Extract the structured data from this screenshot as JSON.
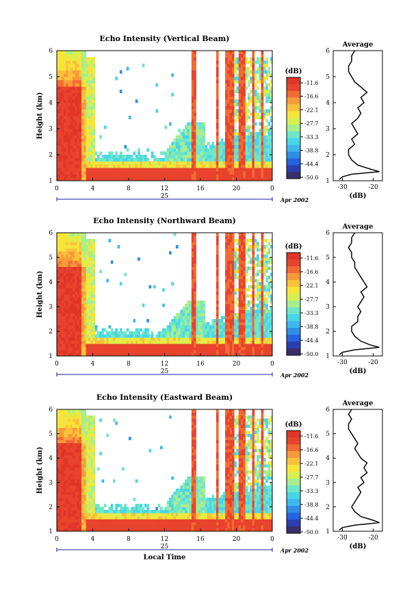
{
  "figure": {
    "date_label": "Apr 2002",
    "day_label": "25",
    "xlabel": "Local Time"
  },
  "colors": {
    "scale": [
      "#3a2e6b",
      "#2a3fb3",
      "#2563e0",
      "#2f8ee8",
      "#3fb7f0",
      "#48d6e8",
      "#6fe6c8",
      "#a7ee8f",
      "#d8f04f",
      "#f7e43a",
      "#f9c23a",
      "#f89a3a",
      "#f46a33",
      "#e8432c",
      "#e03628"
    ],
    "line": "#000000",
    "axis_blue": "#1a1aa0"
  },
  "chart_data": [
    {
      "type": "heatmap",
      "title": "Echo Intensity (Vertical Beam)",
      "xlabel": "",
      "ylabel": "Height (km)",
      "xlim": [
        0,
        24
      ],
      "ylim": [
        1,
        6
      ],
      "x_ticks": [
        "0",
        "4",
        "8",
        "12",
        "16",
        "20",
        "0"
      ],
      "y_ticks": [
        "1",
        "2",
        "3",
        "4",
        "5",
        "6"
      ],
      "colorbar": {
        "label": "(dB)",
        "ticks": [
          "-11.6",
          "-16.6",
          "-22.1",
          "-27.7",
          "-33.3",
          "-38.8",
          "-44.4",
          "-50.0"
        ]
      },
      "average_profile": {
        "title": "Average",
        "xlabel": "(dB)",
        "x_ticks": [
          "-30",
          "-20"
        ],
        "y_ticks": [
          "1",
          "2",
          "3",
          "4",
          "5",
          "6"
        ],
        "points": [
          [
            -31,
            1.05
          ],
          [
            -30,
            1.15
          ],
          [
            -27,
            1.25
          ],
          [
            -18,
            1.35
          ],
          [
            -21,
            1.45
          ],
          [
            -25,
            1.6
          ],
          [
            -27,
            1.8
          ],
          [
            -28,
            2.0
          ],
          [
            -28,
            2.2
          ],
          [
            -26,
            2.4
          ],
          [
            -27,
            2.6
          ],
          [
            -25,
            2.8
          ],
          [
            -26,
            3.0
          ],
          [
            -27,
            3.2
          ],
          [
            -25,
            3.4
          ],
          [
            -24,
            3.6
          ],
          [
            -25,
            3.8
          ],
          [
            -23,
            4.0
          ],
          [
            -24,
            4.2
          ],
          [
            -22,
            4.4
          ],
          [
            -24,
            4.6
          ],
          [
            -26,
            4.8
          ],
          [
            -27,
            5.0
          ],
          [
            -28,
            5.2
          ],
          [
            -28,
            5.4
          ],
          [
            -27,
            5.6
          ],
          [
            -27,
            5.8
          ],
          [
            -26,
            6.0
          ]
        ]
      }
    },
    {
      "type": "heatmap",
      "title": "Echo Intensity (Northward Beam)",
      "xlabel": "",
      "ylabel": "Height (km)",
      "xlim": [
        0,
        24
      ],
      "ylim": [
        1,
        6
      ],
      "x_ticks": [
        "0",
        "4",
        "8",
        "12",
        "16",
        "20",
        "0"
      ],
      "y_ticks": [
        "1",
        "2",
        "3",
        "4",
        "5",
        "6"
      ],
      "colorbar": {
        "label": "(dB)",
        "ticks": [
          "-11.6",
          "-16.6",
          "-22.1",
          "-27.7",
          "-33.3",
          "-38.8",
          "-44.4",
          "-50.0"
        ]
      },
      "average_profile": {
        "title": "Average",
        "xlabel": "(dB)",
        "x_ticks": [
          "-30",
          "-20"
        ],
        "y_ticks": [
          "1",
          "2",
          "3",
          "4",
          "5",
          "6"
        ],
        "points": [
          [
            -31,
            1.05
          ],
          [
            -30,
            1.15
          ],
          [
            -26,
            1.25
          ],
          [
            -18,
            1.35
          ],
          [
            -21,
            1.45
          ],
          [
            -24,
            1.6
          ],
          [
            -26,
            1.8
          ],
          [
            -27,
            2.0
          ],
          [
            -27,
            2.2
          ],
          [
            -25,
            2.4
          ],
          [
            -25,
            2.6
          ],
          [
            -24,
            2.8
          ],
          [
            -25,
            3.0
          ],
          [
            -24,
            3.2
          ],
          [
            -23,
            3.4
          ],
          [
            -24,
            3.6
          ],
          [
            -22,
            3.8
          ],
          [
            -23,
            4.0
          ],
          [
            -24,
            4.2
          ],
          [
            -25,
            4.4
          ],
          [
            -26,
            4.6
          ],
          [
            -26,
            4.8
          ],
          [
            -27,
            5.0
          ],
          [
            -27,
            5.2
          ],
          [
            -28,
            5.4
          ],
          [
            -27,
            5.6
          ],
          [
            -27,
            5.8
          ],
          [
            -26,
            6.0
          ]
        ]
      }
    },
    {
      "type": "heatmap",
      "title": "Echo Intensity (Eastward Beam)",
      "xlabel": "Local Time",
      "ylabel": "Height (km)",
      "xlim": [
        0,
        24
      ],
      "ylim": [
        1,
        6
      ],
      "x_ticks": [
        "0",
        "4",
        "8",
        "12",
        "16",
        "20",
        "0"
      ],
      "y_ticks": [
        "1",
        "2",
        "3",
        "4",
        "5",
        "6"
      ],
      "colorbar": {
        "label": "(dB)",
        "ticks": [
          "-11.6",
          "-16.6",
          "-22.1",
          "-27.7",
          "-33.3",
          "-38.8",
          "-44.4",
          "-50.0"
        ]
      },
      "average_profile": {
        "title": "Average",
        "xlabel": "(dB)",
        "x_ticks": [
          "-30",
          "-20"
        ],
        "y_ticks": [
          "1",
          "2",
          "3",
          "4",
          "5",
          "6"
        ],
        "points": [
          [
            -31,
            1.05
          ],
          [
            -30,
            1.15
          ],
          [
            -26,
            1.25
          ],
          [
            -18,
            1.35
          ],
          [
            -20,
            1.45
          ],
          [
            -24,
            1.6
          ],
          [
            -26,
            1.8
          ],
          [
            -27,
            2.0
          ],
          [
            -26,
            2.2
          ],
          [
            -25,
            2.4
          ],
          [
            -24,
            2.6
          ],
          [
            -25,
            2.8
          ],
          [
            -23,
            3.0
          ],
          [
            -24,
            3.2
          ],
          [
            -22,
            3.4
          ],
          [
            -23,
            3.6
          ],
          [
            -22,
            3.8
          ],
          [
            -24,
            4.0
          ],
          [
            -25,
            4.2
          ],
          [
            -26,
            4.4
          ],
          [
            -25,
            4.6
          ],
          [
            -26,
            4.8
          ],
          [
            -27,
            5.0
          ],
          [
            -28,
            5.2
          ],
          [
            -28,
            5.4
          ],
          [
            -27,
            5.6
          ],
          [
            -28,
            5.8
          ],
          [
            -27,
            6.0
          ]
        ]
      }
    }
  ]
}
